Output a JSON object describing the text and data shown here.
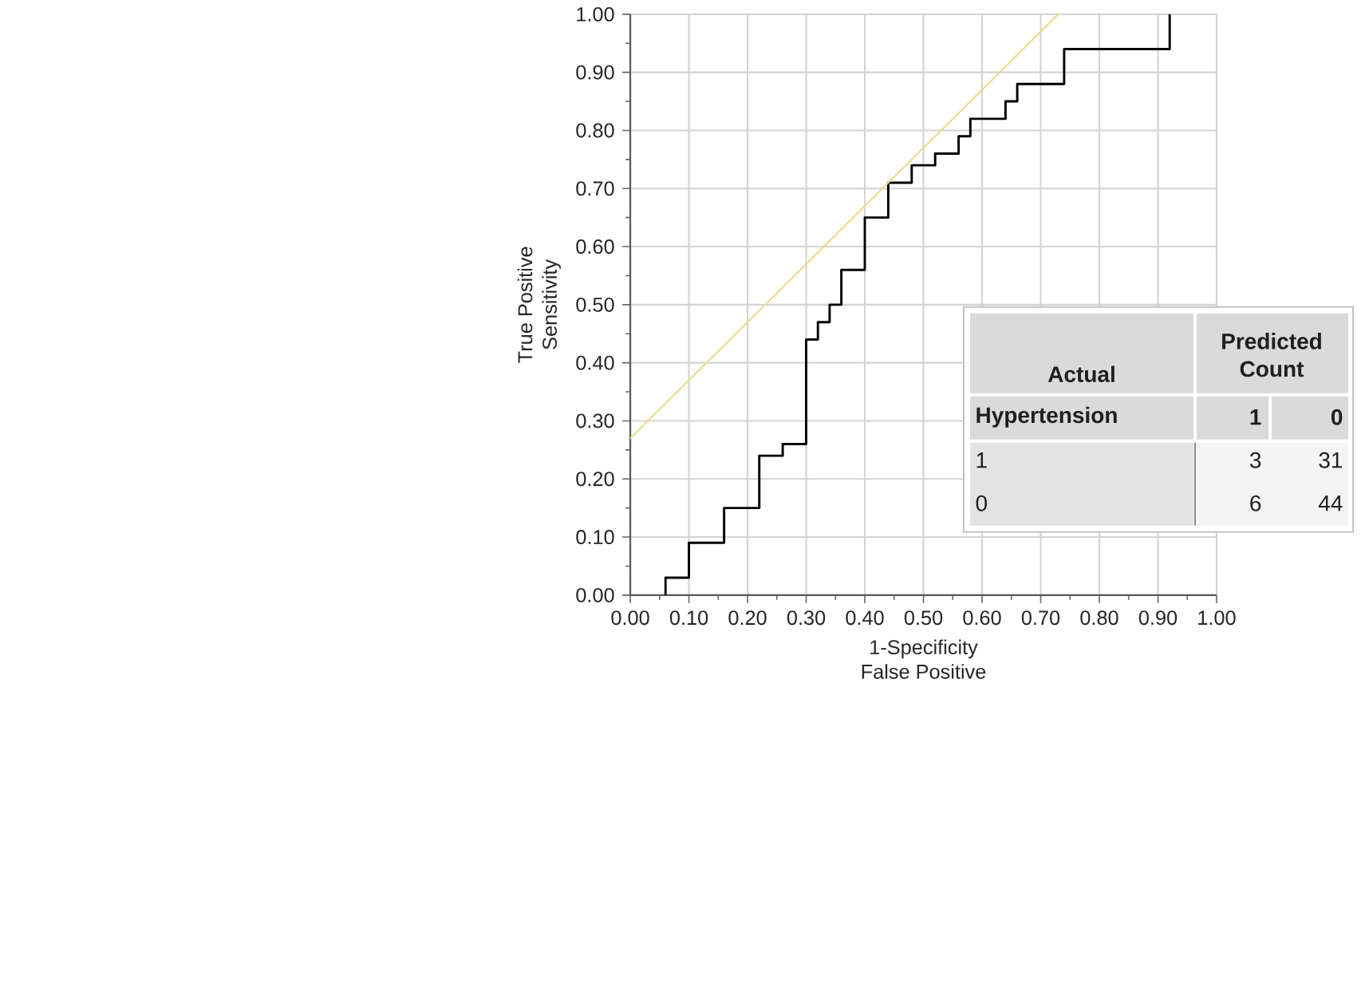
{
  "chart_data": [
    {
      "type": "step",
      "xlabel": "1-Specificity\nFalse Positive",
      "ylabel": "True Positive\nSensitivity",
      "xlim": [
        0,
        1
      ],
      "ylim": [
        0,
        1
      ],
      "xticks": [
        {
          "value": 0,
          "label": "0.00"
        },
        {
          "value": 0.1,
          "label": "0.10"
        },
        {
          "value": 0.2,
          "label": "0.20"
        },
        {
          "value": 0.3,
          "label": "0.30"
        },
        {
          "value": 0.4,
          "label": "0.40"
        },
        {
          "value": 0.5,
          "label": "0.50"
        },
        {
          "value": 0.6,
          "label": "0.60"
        },
        {
          "value": 0.7,
          "label": "0.70"
        },
        {
          "value": 0.8,
          "label": "0.80"
        },
        {
          "value": 0.9,
          "label": "0.90"
        },
        {
          "value": 1,
          "label": "1.00"
        }
      ],
      "yticks": [
        {
          "value": 0,
          "label": "0.00"
        },
        {
          "value": 0.1,
          "label": "0.10"
        },
        {
          "value": 0.2,
          "label": "0.20"
        },
        {
          "value": 0.3,
          "label": "0.30"
        },
        {
          "value": 0.4,
          "label": "0.40"
        },
        {
          "value": 0.5,
          "label": "0.50"
        },
        {
          "value": 0.6,
          "label": "0.60"
        },
        {
          "value": 0.7,
          "label": "0.70"
        },
        {
          "value": 0.8,
          "label": "0.80"
        },
        {
          "value": 0.9,
          "label": "0.90"
        },
        {
          "value": 1,
          "label": "1.00"
        }
      ],
      "grid": true,
      "series": [
        {
          "type": "step",
          "color": "#000000",
          "x": [
            0.06,
            0.06,
            0.1,
            0.16,
            0.22,
            0.26,
            0.3,
            0.32,
            0.34,
            0.36,
            0.4,
            0.44,
            0.48,
            0.52,
            0.56,
            0.58,
            0.64,
            0.66,
            0.74,
            0.92
          ],
          "values": [
            0,
            0.03,
            0.09,
            0.15,
            0.24,
            0.26,
            0.44,
            0.47,
            0.5,
            0.56,
            0.65,
            0.71,
            0.74,
            0.76,
            0.79,
            0.82,
            0.85,
            0.88,
            0.94,
            1.0
          ]
        },
        {
          "type": "line",
          "color": "#e8dc8c",
          "x": [
            0,
            0.73
          ],
          "values": [
            0.27,
            1.0
          ]
        }
      ]
    },
    {
      "type": "other",
      "annotations": [
        "Actual",
        "Predicted Count",
        "Hypertension",
        "1",
        "0",
        "1",
        "3",
        "31",
        "0",
        "6",
        "44"
      ]
    }
  ]
}
